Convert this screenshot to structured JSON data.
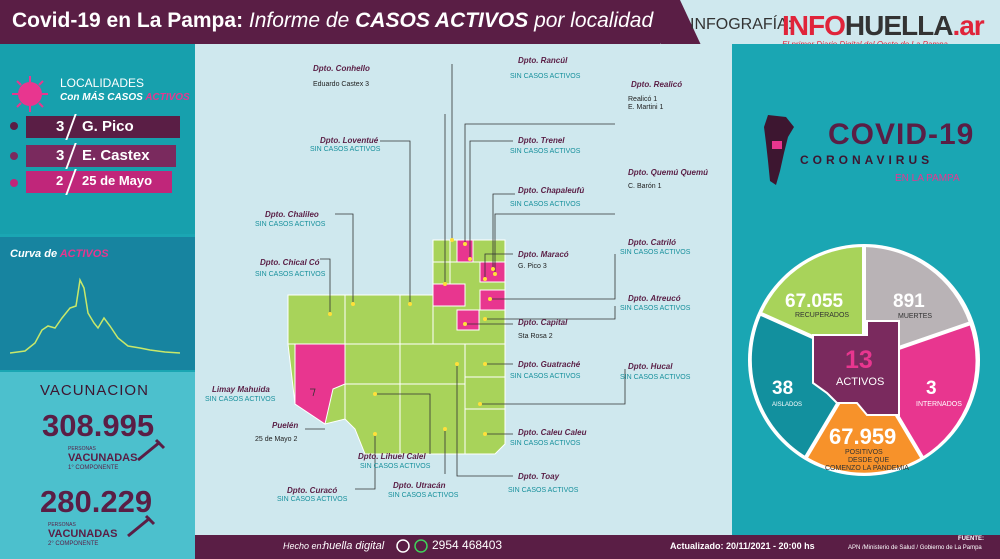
{
  "header": {
    "title_bold": "Covid-19 en La Pampa:",
    "title_italic": "Informe de",
    "title_bold2": "CASOS ACTIVOS",
    "title_italic2": "por localidad",
    "infografia": "INFOGRAFÍA:",
    "logo_info": "INFO",
    "logo_huella": "HUELLA",
    "logo_ar": ".ar",
    "logo_tagline": "El primer Diario Digital del Oeste de La Pampa"
  },
  "localidades": {
    "title": "LOCALIDADES",
    "subtitle_a": "Con MÁS CASOS",
    "subtitle_b": "ACTIVOS",
    "items": [
      {
        "n": "3",
        "name": "G. Pico"
      },
      {
        "n": "3",
        "name": "E. Castex"
      },
      {
        "n": "2",
        "name": "25 de Mayo"
      }
    ]
  },
  "curve": {
    "title_a": "Curva de",
    "title_b": "ACTIVOS"
  },
  "vacunacion": {
    "title": "VACUNACION",
    "n1": "308.995",
    "small1": "PERSONAS",
    "label1": "VACUNADAS",
    "comp1": "1° COMPONENTE",
    "n2": "280.229",
    "small2": "PERSONAS",
    "label2": "VACUNADAS",
    "comp2": "2° COMPONENTE"
  },
  "departments": [
    {
      "name": "Dpto. Conhello",
      "val": "Eduardo Castex 3"
    },
    {
      "name": "Dpto. Rancúl",
      "stat": "SIN CASOS ACTIVOS"
    },
    {
      "name": "Dpto. Realicó",
      "val": "Realicó 1",
      "val2": "E. Martini 1"
    },
    {
      "name": "Dpto. Loventué",
      "stat": "SIN CASOS ACTIVOS"
    },
    {
      "name": "Dpto. Trenel",
      "stat": "SIN CASOS ACTIVOS"
    },
    {
      "name": "Dpto. Quemú Quemú",
      "val": "C. Barón 1"
    },
    {
      "name": "Dpto. Chapaleufú",
      "stat": "SIN CASOS ACTIVOS"
    },
    {
      "name": "Dpto. Chalileo",
      "stat": "SIN CASOS ACTIVOS"
    },
    {
      "name": "Dpto. Maracó",
      "val": "G. Pico 3"
    },
    {
      "name": "Dpto. Catriló",
      "stat": "SIN CASOS ACTIVOS"
    },
    {
      "name": "Dpto. Chical Có",
      "stat": "SIN CASOS ACTIVOS"
    },
    {
      "name": "Dpto. Atreucó",
      "stat": "SIN CASOS ACTIVOS"
    },
    {
      "name": "Dpto. Capital",
      "val": "Sta Rosa 2"
    },
    {
      "name": "Dpto. Guatraché",
      "stat": "SIN CASOS ACTIVOS"
    },
    {
      "name": "Dpto. Hucal",
      "stat": "SIN CASOS ACTIVOS"
    },
    {
      "name": "Limay Mahuida",
      "stat": "SIN CASOS ACTIVOS"
    },
    {
      "name": "Puelén",
      "val": "25 de Mayo 2"
    },
    {
      "name": "Dpto. Caleu Caleu",
      "stat": "SIN CASOS ACTIVOS"
    },
    {
      "name": "Dpto. Lihuel Calel",
      "stat": "SIN CASOS ACTIVOS"
    },
    {
      "name": "Dpto. Toay",
      "stat": "SIN CASOS ACTIVOS"
    },
    {
      "name": "Dpto. Curacó",
      "stat": "SIN CASOS ACTIVOS"
    },
    {
      "name": "Dpto. Utracán",
      "stat": "SIN CASOS ACTIVOS"
    }
  ],
  "covid": {
    "title": "COVID-19",
    "subtitle": "CORONAVIRUS",
    "region": "EN LA PAMPA",
    "recuperados_n": "67.055",
    "recuperados_l": "RECUPERADOS",
    "muertes_n": "891",
    "muertes_l": "MUERTES",
    "activos_n": "13",
    "activos_l": "ACTIVOS",
    "aislados_n": "38",
    "aislados_l": "AISLADOS",
    "internados_n": "3",
    "internados_l": "INTERNADOS",
    "positivos_n": "67.959",
    "positivos_l1": "POSITIVOS",
    "positivos_l2": "DESDE QUE",
    "positivos_l3": "COMENZO LA PANDEMIA"
  },
  "footer": {
    "hecho": "Hecho en:",
    "brand": "huella digital",
    "phone": "2954 468403",
    "actualizado": "Actualizado: 20/11/2021  -  20:00 hs",
    "fuente_label": "FUENTE:",
    "fuente": "APN /Ministerio de Salud  / Gobierno de La Pampa"
  },
  "colors": {
    "purple": "#5a1e45",
    "magenta": "#e8368f",
    "teal": "#1aa6b3",
    "green": "#a8d35a"
  }
}
